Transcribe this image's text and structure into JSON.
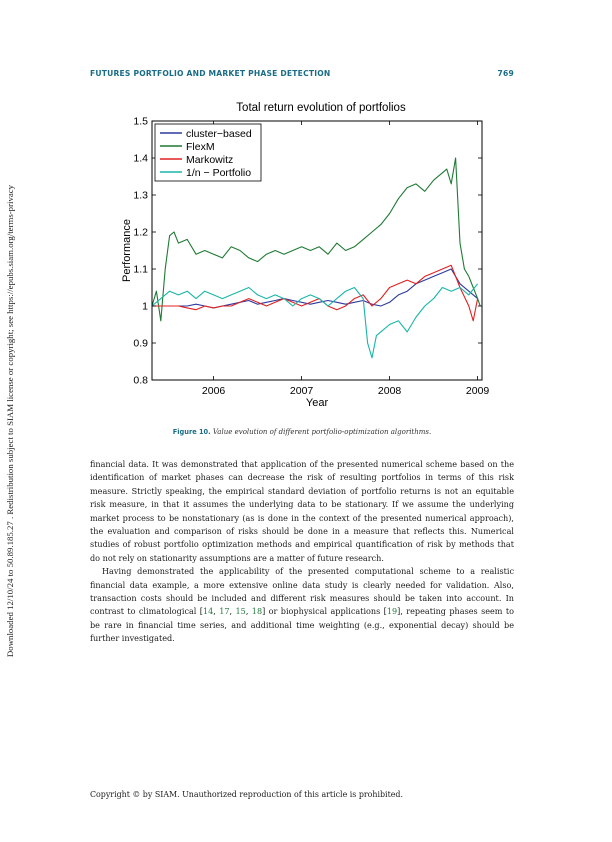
{
  "sidebar_note": "Downloaded 12/10/24 to 50.89.185.27 . Redistribution subject to SIAM license or copyright; see https://epubs.siam.org/terms-privacy",
  "header": {
    "title": "FUTURES PORTFOLIO AND MARKET PHASE DETECTION",
    "page_number": "769"
  },
  "figure": {
    "caption_label": "Figure 10.",
    "caption_text": "Value evolution of different portfolio-optimization algorithms."
  },
  "chart_data": {
    "type": "line",
    "title": "Total return evolution of portfolios",
    "xlabel": "Year",
    "ylabel": "Performance",
    "xlim": [
      2005.3,
      2009.05
    ],
    "ylim": [
      0.8,
      1.5
    ],
    "x_ticks": [
      2006,
      2007,
      2008,
      2009
    ],
    "x_tick_labels": [
      "2006",
      "2007",
      "2008",
      "2009"
    ],
    "y_ticks": [
      0.8,
      0.9,
      1.0,
      1.1,
      1.2,
      1.3,
      1.4,
      1.5
    ],
    "y_tick_labels": [
      "0.8",
      "0.9",
      "1",
      "1.1",
      "1.2",
      "1.3",
      "1.4",
      "1.5"
    ],
    "grid": false,
    "legend_position": "top-left",
    "series": [
      {
        "name": "cluster−based",
        "color": "#2d3a9e",
        "x": [
          2005.3,
          2005.4,
          2005.5,
          2005.6,
          2005.7,
          2005.8,
          2005.9,
          2006.0,
          2006.1,
          2006.2,
          2006.3,
          2006.4,
          2006.5,
          2006.6,
          2006.7,
          2006.8,
          2006.9,
          2007.0,
          2007.1,
          2007.2,
          2007.3,
          2007.4,
          2007.5,
          2007.6,
          2007.7,
          2007.8,
          2007.9,
          2008.0,
          2008.1,
          2008.2,
          2008.3,
          2008.4,
          2008.5,
          2008.6,
          2008.7,
          2008.8,
          2008.9,
          2009.0
        ],
        "y": [
          1.0,
          1.0,
          1.0,
          1.0,
          1.0,
          1.005,
          1.0,
          0.995,
          1.0,
          1.005,
          1.01,
          1.015,
          1.005,
          1.01,
          1.015,
          1.02,
          1.015,
          1.01,
          1.005,
          1.01,
          1.015,
          1.01,
          1.005,
          1.01,
          1.015,
          1.005,
          1.0,
          1.01,
          1.03,
          1.04,
          1.06,
          1.07,
          1.08,
          1.09,
          1.1,
          1.06,
          1.04,
          1.02
        ]
      },
      {
        "name": "FlexM",
        "color": "#1f7a34",
        "x": [
          2005.3,
          2005.35,
          2005.4,
          2005.45,
          2005.5,
          2005.55,
          2005.6,
          2005.7,
          2005.8,
          2005.9,
          2006.0,
          2006.1,
          2006.2,
          2006.3,
          2006.4,
          2006.5,
          2006.6,
          2006.7,
          2006.8,
          2006.9,
          2007.0,
          2007.1,
          2007.2,
          2007.3,
          2007.4,
          2007.5,
          2007.6,
          2007.7,
          2007.8,
          2007.9,
          2008.0,
          2008.1,
          2008.2,
          2008.3,
          2008.4,
          2008.5,
          2008.6,
          2008.65,
          2008.7,
          2008.75,
          2008.8,
          2008.85,
          2008.9,
          2008.95,
          2009.0,
          2009.03
        ],
        "y": [
          1.0,
          1.04,
          0.96,
          1.1,
          1.19,
          1.2,
          1.17,
          1.18,
          1.14,
          1.15,
          1.14,
          1.13,
          1.16,
          1.15,
          1.13,
          1.12,
          1.14,
          1.15,
          1.14,
          1.15,
          1.16,
          1.15,
          1.16,
          1.14,
          1.17,
          1.15,
          1.16,
          1.18,
          1.2,
          1.22,
          1.25,
          1.29,
          1.32,
          1.33,
          1.31,
          1.34,
          1.36,
          1.37,
          1.33,
          1.4,
          1.17,
          1.1,
          1.08,
          1.05,
          1.02,
          1.0
        ]
      },
      {
        "name": "Markowitz",
        "color": "#e02020",
        "x": [
          2005.3,
          2005.4,
          2005.5,
          2005.6,
          2005.7,
          2005.8,
          2005.9,
          2006.0,
          2006.1,
          2006.2,
          2006.3,
          2006.4,
          2006.5,
          2006.6,
          2006.7,
          2006.8,
          2006.9,
          2007.0,
          2007.1,
          2007.2,
          2007.3,
          2007.4,
          2007.5,
          2007.6,
          2007.7,
          2007.8,
          2007.9,
          2008.0,
          2008.1,
          2008.2,
          2008.3,
          2008.4,
          2008.5,
          2008.6,
          2008.7,
          2008.8,
          2008.9,
          2008.95,
          2009.0
        ],
        "y": [
          1.0,
          1.0,
          1.0,
          1.0,
          0.995,
          0.99,
          1.0,
          0.995,
          1.0,
          1.0,
          1.01,
          1.02,
          1.01,
          1.0,
          1.01,
          1.02,
          1.01,
          1.0,
          1.01,
          1.02,
          1.0,
          0.99,
          1.0,
          1.02,
          1.03,
          1.0,
          1.02,
          1.05,
          1.06,
          1.07,
          1.06,
          1.08,
          1.09,
          1.1,
          1.11,
          1.05,
          1.0,
          0.96,
          1.02
        ]
      },
      {
        "name": "1/n − Portfolio",
        "color": "#19b5a8",
        "x": [
          2005.3,
          2005.4,
          2005.5,
          2005.6,
          2005.7,
          2005.8,
          2005.9,
          2006.0,
          2006.1,
          2006.2,
          2006.3,
          2006.4,
          2006.5,
          2006.6,
          2006.7,
          2006.8,
          2006.9,
          2007.0,
          2007.1,
          2007.2,
          2007.3,
          2007.4,
          2007.5,
          2007.6,
          2007.7,
          2007.75,
          2007.8,
          2007.85,
          2007.9,
          2008.0,
          2008.1,
          2008.2,
          2008.3,
          2008.4,
          2008.5,
          2008.6,
          2008.7,
          2008.8,
          2008.9,
          2009.0
        ],
        "y": [
          1.0,
          1.02,
          1.04,
          1.03,
          1.04,
          1.02,
          1.04,
          1.03,
          1.02,
          1.03,
          1.04,
          1.05,
          1.03,
          1.02,
          1.03,
          1.02,
          1.0,
          1.02,
          1.03,
          1.02,
          1.0,
          1.02,
          1.04,
          1.05,
          1.02,
          0.9,
          0.86,
          0.92,
          0.93,
          0.95,
          0.96,
          0.93,
          0.97,
          1.0,
          1.02,
          1.05,
          1.04,
          1.05,
          1.03,
          1.06
        ]
      }
    ]
  },
  "body": {
    "para1": "financial data. It was demonstrated that application of the presented numerical scheme based on the identification of market phases can decrease the risk of resulting portfolios in terms of this risk measure. Strictly speaking, the empirical standard deviation of portfolio returns is not an equitable risk measure, in that it assumes the underlying data to be stationary. If we assume the underlying market process to be nonstationary (as is done in the context of the presented numerical approach), the evaluation and comparison of risks should be done in a measure that reflects this. Numerical studies of robust portfolio optimization methods and empirical quantification of risk by methods that do not rely on stationarity assumptions are a matter of future research.",
    "para2_part1": "Having demonstrated the applicability of the presented computational scheme to a realistic financial data example, a more extensive online data study is clearly needed for validation. Also, transaction costs should be included and different risk measures should be taken into account. In contrast to climatological [",
    "cite_14": "14",
    "sep_a": ", ",
    "cite_17": "17",
    "sep_b": ", ",
    "cite_15": "15",
    "sep_c": ", ",
    "cite_18": "18",
    "para2_part2": "] or biophysical applications [",
    "cite_19": "19",
    "para2_part3": "], repeating phases seem to be rare in financial time series, and additional time weighting (e.g., exponential decay) should be further investigated."
  },
  "footer": "Copyright © by SIAM. Unauthorized reproduction of this article is prohibited."
}
